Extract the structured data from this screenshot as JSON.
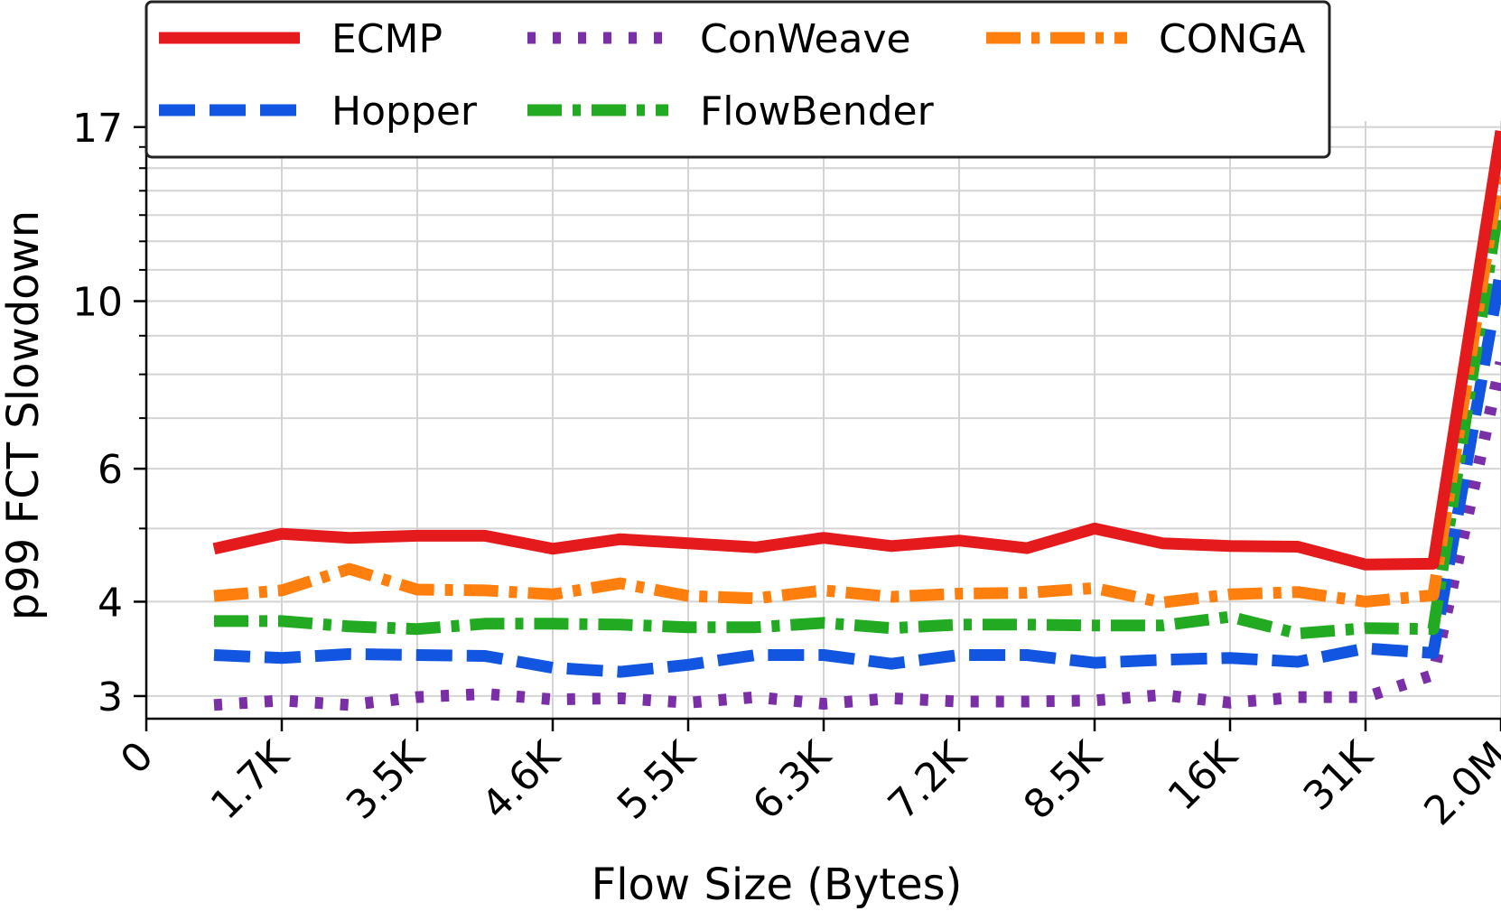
{
  "chart_data": {
    "type": "line",
    "title": "",
    "xlabel": "Flow Size (Bytes)",
    "ylabel": "p99 FCT Slowdown",
    "yscale": "log",
    "ylim": [
      2.8,
      18
    ],
    "yticks": [
      3,
      4,
      6,
      10,
      17
    ],
    "ytick_labels": [
      "3",
      "4",
      "6",
      "10",
      "17"
    ],
    "xlim": [
      0,
      20
    ],
    "xticks": [
      0,
      2,
      4,
      6,
      8,
      10,
      12,
      14,
      16,
      18,
      20
    ],
    "xtick_labels": [
      "0",
      "1.7K",
      "3.5K",
      "4.6K",
      "5.5K",
      "6.3K",
      "7.2K",
      "8.5K",
      "16K",
      "31K",
      "2.0M"
    ],
    "grid": true,
    "legend_position": "top",
    "x": [
      1,
      2,
      3,
      4,
      5,
      6,
      7,
      8,
      9,
      10,
      11,
      12,
      13,
      14,
      15,
      16,
      17,
      18,
      19,
      20
    ],
    "series": [
      {
        "name": "ECMP",
        "color": "#e41a1c",
        "style": "solid",
        "values": [
          4.7,
          4.92,
          4.86,
          4.89,
          4.89,
          4.7,
          4.84,
          4.78,
          4.72,
          4.86,
          4.74,
          4.82,
          4.71,
          5.0,
          4.78,
          4.74,
          4.73,
          4.48,
          4.49,
          16.8
        ]
      },
      {
        "name": "Hopper",
        "color": "#1155e0",
        "style": "dashed",
        "values": [
          3.4,
          3.37,
          3.41,
          3.4,
          3.39,
          3.27,
          3.23,
          3.3,
          3.4,
          3.4,
          3.31,
          3.4,
          3.4,
          3.32,
          3.35,
          3.37,
          3.33,
          3.47,
          3.42,
          11.0
        ]
      },
      {
        "name": "ConWeave",
        "color": "#7b2fa6",
        "style": "dotted",
        "values": [
          2.92,
          2.96,
          2.92,
          2.99,
          3.02,
          2.97,
          2.98,
          2.94,
          2.99,
          2.93,
          2.98,
          2.95,
          2.95,
          2.96,
          3.01,
          2.94,
          2.99,
          2.99,
          3.2,
          8.3
        ]
      },
      {
        "name": "FlowBender",
        "color": "#22aa22",
        "style": "dashdot",
        "values": [
          3.77,
          3.77,
          3.71,
          3.68,
          3.74,
          3.74,
          3.73,
          3.7,
          3.7,
          3.75,
          3.69,
          3.73,
          3.73,
          3.72,
          3.72,
          3.82,
          3.63,
          3.69,
          3.68,
          14.0
        ]
      },
      {
        "name": "CONGA",
        "color": "#ff7f0e",
        "style": "dashdot",
        "values": [
          4.07,
          4.14,
          4.42,
          4.15,
          4.14,
          4.09,
          4.23,
          4.07,
          4.04,
          4.14,
          4.06,
          4.1,
          4.11,
          4.17,
          3.99,
          4.09,
          4.12,
          4.0,
          4.08,
          15.2
        ]
      }
    ]
  }
}
